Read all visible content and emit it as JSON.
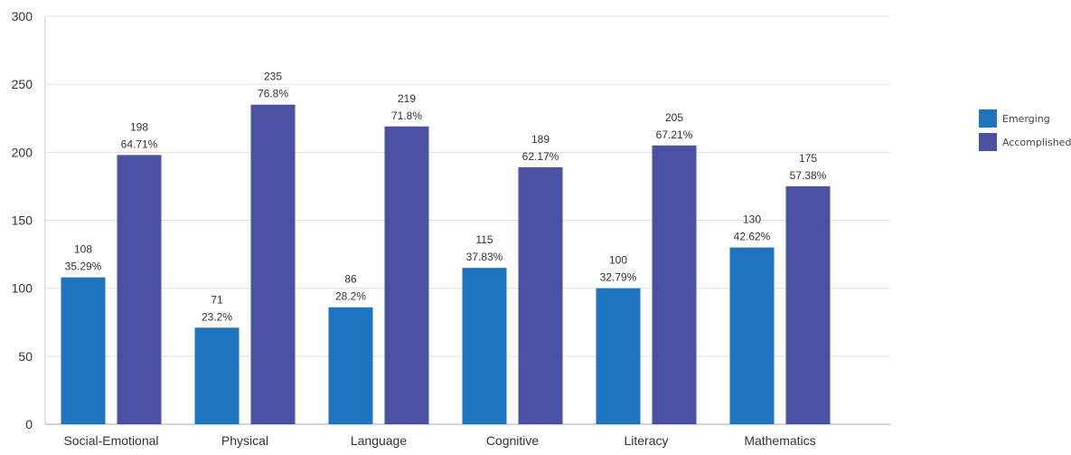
{
  "chart_data": {
    "type": "bar",
    "categories": [
      "Social-Emotional",
      "Physical",
      "Language",
      "Cognitive",
      "Literacy",
      "Mathematics"
    ],
    "series": [
      {
        "name": "Emerging",
        "color": "#1f74bf",
        "values": [
          108,
          71,
          86,
          115,
          100,
          130
        ],
        "percent_labels": [
          "35.29%",
          "23.2%",
          "28.2%",
          "37.83%",
          "32.79%",
          "42.62%"
        ]
      },
      {
        "name": "Accomplished",
        "color": "#4b51a3",
        "values": [
          198,
          235,
          219,
          189,
          205,
          175
        ],
        "percent_labels": [
          "64.71%",
          "76.8%",
          "71.8%",
          "62.17%",
          "67.21%",
          "57.38%"
        ]
      }
    ],
    "ylim": [
      0,
      300
    ],
    "yticks": [
      0,
      50,
      100,
      150,
      200,
      250,
      300
    ],
    "grid": true,
    "legend_position": "right",
    "title": "",
    "xlabel": "",
    "ylabel": ""
  }
}
